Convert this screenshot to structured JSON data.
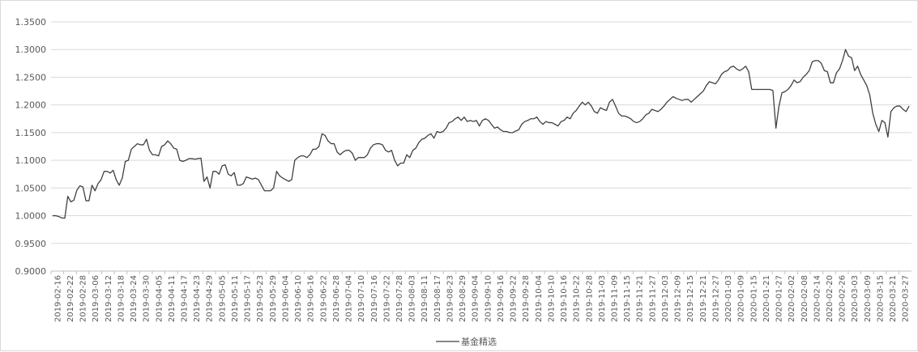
{
  "chart_data": {
    "type": "line",
    "title": "",
    "xlabel": "",
    "ylabel": "",
    "ylim": [
      0.9,
      1.35
    ],
    "y_ticks": [
      "1.3500",
      "1.3000",
      "1.2500",
      "1.2000",
      "1.1500",
      "1.1000",
      "1.0500",
      "1.0000",
      "0.9500",
      "0.9000"
    ],
    "x_ticks": [
      "2019-02-16",
      "2019-02-22",
      "2019-02-28",
      "2019-03-06",
      "2019-03-12",
      "2019-03-18",
      "2019-03-24",
      "2019-03-30",
      "2019-04-05",
      "2019-04-11",
      "2019-04-17",
      "2019-04-23",
      "2019-04-29",
      "2019-05-05",
      "2019-05-11",
      "2019-05-17",
      "2019-05-23",
      "2019-05-29",
      "2019-06-04",
      "2019-06-10",
      "2019-06-16",
      "2019-06-22",
      "2019-06-28",
      "2019-07-04",
      "2019-07-10",
      "2019-07-16",
      "2019-07-22",
      "2019-07-28",
      "2019-08-03",
      "2019-08-11",
      "2019-08-17",
      "2019-08-23",
      "2019-08-29",
      "2019-09-04",
      "2019-09-10",
      "2019-09-16",
      "2019-09-22",
      "2019-09-28",
      "2019-10-04",
      "2019-10-10",
      "2019-10-16",
      "2019-10-22",
      "2019-10-28",
      "2019-11-03",
      "2019-11-09",
      "2019-11-15",
      "2019-11-21",
      "2019-11-27",
      "2019-12-03",
      "2019-12-09",
      "2019-12-15",
      "2019-12-21",
      "2019-12-27",
      "2020-01-03",
      "2020-01-09",
      "2020-01-15",
      "2020-01-21",
      "2020-01-27",
      "2020-02-02",
      "2020-02-08",
      "2020-02-14",
      "2020-02-20",
      "2020-02-26",
      "2020-03-03",
      "2020-03-09",
      "2020-03-15",
      "2020-03-21",
      "2020-03-27"
    ],
    "legend_position": "bottom",
    "grid": true,
    "colors": {
      "line": "#404040",
      "grid": "#d9d9d9",
      "axis": "#bfbfbf"
    },
    "series": [
      {
        "name": "基金精选",
        "values": [
          1.0,
          1.0,
          0.9985,
          0.996,
          0.9955,
          1.035,
          1.025,
          1.028,
          1.046,
          1.054,
          1.052,
          1.027,
          1.027,
          1.055,
          1.045,
          1.058,
          1.065,
          1.08,
          1.08,
          1.077,
          1.082,
          1.065,
          1.055,
          1.068,
          1.098,
          1.1,
          1.12,
          1.125,
          1.13,
          1.128,
          1.128,
          1.138,
          1.118,
          1.11,
          1.11,
          1.108,
          1.125,
          1.128,
          1.135,
          1.13,
          1.122,
          1.12,
          1.1,
          1.098,
          1.1,
          1.103,
          1.103,
          1.102,
          1.103,
          1.104,
          1.062,
          1.07,
          1.05,
          1.08,
          1.08,
          1.075,
          1.09,
          1.092,
          1.075,
          1.072,
          1.078,
          1.055,
          1.055,
          1.058,
          1.07,
          1.068,
          1.066,
          1.068,
          1.065,
          1.055,
          1.045,
          1.045,
          1.045,
          1.05,
          1.08,
          1.072,
          1.068,
          1.065,
          1.062,
          1.065,
          1.1,
          1.105,
          1.108,
          1.108,
          1.105,
          1.11,
          1.12,
          1.12,
          1.125,
          1.148,
          1.145,
          1.135,
          1.13,
          1.13,
          1.115,
          1.11,
          1.115,
          1.118,
          1.118,
          1.113,
          1.1,
          1.105,
          1.105,
          1.105,
          1.11,
          1.122,
          1.128,
          1.13,
          1.13,
          1.128,
          1.118,
          1.115,
          1.118,
          1.1,
          1.09,
          1.095,
          1.095,
          1.11,
          1.105,
          1.118,
          1.122,
          1.132,
          1.138,
          1.14,
          1.145,
          1.148,
          1.14,
          1.152,
          1.15,
          1.152,
          1.158,
          1.168,
          1.17,
          1.175,
          1.178,
          1.172,
          1.178,
          1.17,
          1.172,
          1.17,
          1.172,
          1.162,
          1.172,
          1.175,
          1.172,
          1.165,
          1.158,
          1.16,
          1.155,
          1.152,
          1.152,
          1.15,
          1.15,
          1.153,
          1.155,
          1.165,
          1.17,
          1.172,
          1.175,
          1.175,
          1.178,
          1.17,
          1.165,
          1.17,
          1.168,
          1.168,
          1.165,
          1.162,
          1.17,
          1.172,
          1.178,
          1.175,
          1.185,
          1.19,
          1.198,
          1.205,
          1.2,
          1.205,
          1.198,
          1.188,
          1.185,
          1.195,
          1.192,
          1.19,
          1.205,
          1.21,
          1.198,
          1.185,
          1.18,
          1.18,
          1.178,
          1.175,
          1.17,
          1.168,
          1.17,
          1.175,
          1.182,
          1.185,
          1.192,
          1.19,
          1.188,
          1.192,
          1.198,
          1.205,
          1.21,
          1.215,
          1.212,
          1.21,
          1.208,
          1.21,
          1.21,
          1.205,
          1.21,
          1.215,
          1.22,
          1.225,
          1.235,
          1.242,
          1.24,
          1.238,
          1.245,
          1.255,
          1.26,
          1.262,
          1.268,
          1.27,
          1.265,
          1.262,
          1.265,
          1.27,
          1.26,
          1.228,
          1.228,
          1.228,
          1.228,
          1.228,
          1.228,
          1.228,
          1.226,
          1.158,
          1.198,
          1.222,
          1.224,
          1.228,
          1.235,
          1.245,
          1.24,
          1.242,
          1.25,
          1.255,
          1.262,
          1.278,
          1.28,
          1.28,
          1.275,
          1.262,
          1.26,
          1.24,
          1.24,
          1.258,
          1.265,
          1.28,
          1.3,
          1.288,
          1.285,
          1.262,
          1.27,
          1.255,
          1.245,
          1.235,
          1.218,
          1.185,
          1.165,
          1.152,
          1.172,
          1.168,
          1.142,
          1.188,
          1.195,
          1.198,
          1.198,
          1.192,
          1.188,
          1.198
        ]
      }
    ]
  }
}
